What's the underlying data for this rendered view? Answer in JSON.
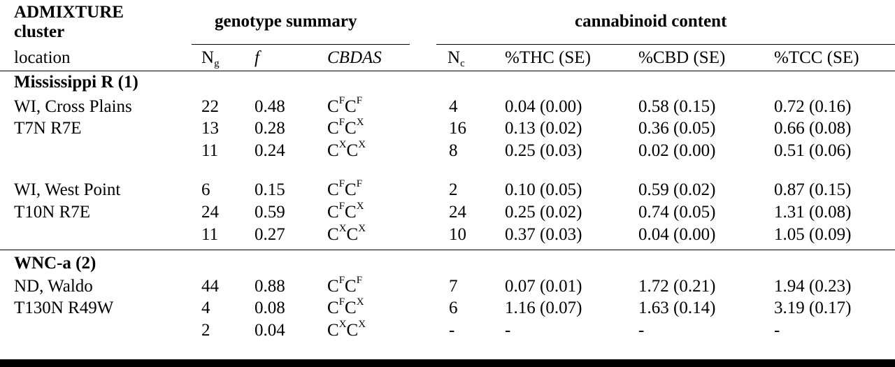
{
  "header": {
    "cluster_label_1": "ADMIXTURE",
    "cluster_label_2": "cluster",
    "group_genotype": "genotype summary",
    "group_cannabinoid": "cannabinoid content",
    "location_label": "location",
    "col_ng_base": "N",
    "col_ng_sub": "g",
    "col_f": "f",
    "col_cbdas": "CBDAS",
    "col_nc_base": "N",
    "col_nc_sub": "c",
    "col_thc": "%THC (SE)",
    "col_cbd": "%CBD (SE)",
    "col_tcc": "%TCC (SE)"
  },
  "sections": [
    {
      "title": "Mississippi R (1)",
      "rows": [
        {
          "loc": "WI, Cross Plains",
          "ng": "22",
          "f": "0.48",
          "g1": "F",
          "g2": "F",
          "nc": "4",
          "thc": "0.04 (0.00)",
          "cbd": "0.58 (0.15)",
          "tcc": "0.72 (0.16)"
        },
        {
          "loc": "T7N R7E",
          "ng": "13",
          "f": "0.28",
          "g1": "F",
          "g2": "X",
          "nc": "16",
          "thc": "0.13 (0.02)",
          "cbd": "0.36 (0.05)",
          "tcc": "0.66 (0.08)"
        },
        {
          "loc": "",
          "ng": "11",
          "f": "0.24",
          "g1": "X",
          "g2": "X",
          "nc": "8",
          "thc": "0.25 (0.03)",
          "cbd": "0.02 (0.00)",
          "tcc": "0.51 (0.06)"
        },
        {
          "loc": "WI, West Point",
          "ng": "6",
          "f": "0.15",
          "g1": "F",
          "g2": "F",
          "nc": "2",
          "thc": "0.10 (0.05)",
          "cbd": "0.59 (0.02)",
          "tcc": "0.87 (0.15)"
        },
        {
          "loc": "T10N R7E",
          "ng": "24",
          "f": "0.59",
          "g1": "F",
          "g2": "X",
          "nc": "24",
          "thc": "0.25 (0.02)",
          "cbd": "0.74 (0.05)",
          "tcc": "1.31 (0.08)"
        },
        {
          "loc": "",
          "ng": "11",
          "f": "0.27",
          "g1": "X",
          "g2": "X",
          "nc": "10",
          "thc": "0.37 (0.03)",
          "cbd": "0.04 (0.00)",
          "tcc": "1.05 (0.09)"
        }
      ]
    },
    {
      "title": "WNC-a (2)",
      "rows": [
        {
          "loc": "ND, Waldo",
          "ng": "44",
          "f": "0.88",
          "g1": "F",
          "g2": "F",
          "nc": "7",
          "thc": "0.07 (0.01)",
          "cbd": "1.72 (0.21)",
          "tcc": "1.94 (0.23)"
        },
        {
          "loc": "T130N R49W",
          "ng": "4",
          "f": "0.08",
          "g1": "F",
          "g2": "X",
          "nc": "6",
          "thc": "1.16 (0.07)",
          "cbd": "1.63 (0.14)",
          "tcc": "3.19 (0.17)"
        },
        {
          "loc": "",
          "ng": "2",
          "f": "0.04",
          "g1": "X",
          "g2": "X",
          "nc": "-",
          "thc": "-",
          "cbd": "-",
          "tcc": "-"
        }
      ]
    }
  ]
}
